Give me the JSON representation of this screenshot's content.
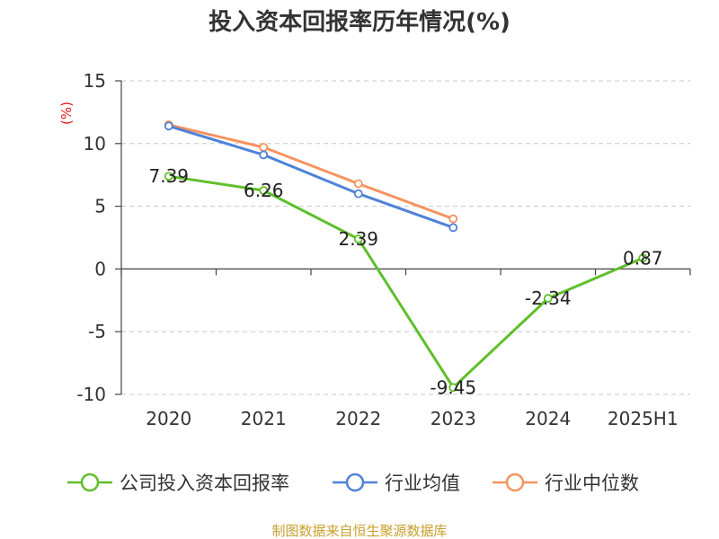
{
  "chart_data": {
    "type": "line",
    "title": "投入资本回报率历年情况(%)",
    "ylabel": "(%)",
    "categories": [
      "2020",
      "2021",
      "2022",
      "2023",
      "2024",
      "2025H1"
    ],
    "ylim": [
      -10,
      15
    ],
    "yticks": [
      15,
      10,
      5,
      0,
      -5,
      -10
    ],
    "grid": true,
    "legend_position": "bottom",
    "series": [
      {
        "name": "公司投入资本回报率",
        "color": "#5fbf2a",
        "values": [
          7.39,
          6.26,
          2.39,
          -9.45,
          -2.34,
          0.87
        ],
        "labels": [
          "7.39",
          "6.26",
          "2.39",
          "-9.45",
          "-2.34",
          "0.87"
        ]
      },
      {
        "name": "行业均值",
        "color": "#4f82d8",
        "values": [
          11.4,
          9.1,
          6.0,
          3.3,
          null,
          null
        ]
      },
      {
        "name": "行业中位数",
        "color": "#f7935f",
        "values": [
          11.5,
          9.7,
          6.8,
          4.0,
          null,
          null
        ]
      }
    ]
  },
  "source": "制图数据来自恒生聚源数据库"
}
